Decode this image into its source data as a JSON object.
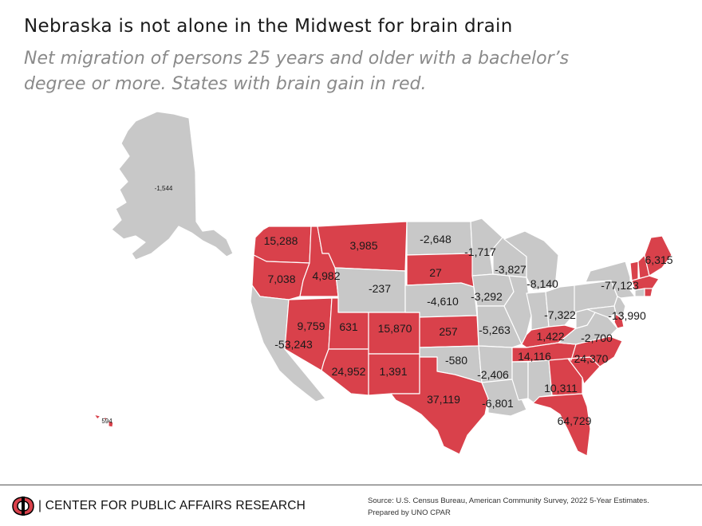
{
  "header": {
    "title": "Nebraska is not alone in the Midwest for brain drain",
    "subtitle": "Net migration of persons 25 years and older with a bachelor’s degree or more. States with brain gain in red."
  },
  "colors": {
    "gain": "#d9414b",
    "loss": "#c8c8c8",
    "border": "#ffffff",
    "text": "#1a1a1a"
  },
  "map_data": {
    "legend_rule": "States with brain gain in red",
    "states": [
      {
        "name": "Alaska",
        "label": "-1,544",
        "gain": false
      },
      {
        "name": "Hawaii",
        "label": "594",
        "gain": true
      },
      {
        "name": "Washington",
        "label": "15,288",
        "gain": true
      },
      {
        "name": "Oregon",
        "label": "7,038",
        "gain": true
      },
      {
        "name": "California",
        "label": "-53,243",
        "gain": false
      },
      {
        "name": "Idaho",
        "label": "4,982",
        "gain": true
      },
      {
        "name": "Nevada",
        "label": "9,759",
        "gain": true
      },
      {
        "name": "Montana",
        "label": "3,985",
        "gain": true
      },
      {
        "name": "Wyoming",
        "label": "-237",
        "gain": false
      },
      {
        "name": "Utah",
        "label": "631",
        "gain": true
      },
      {
        "name": "Arizona",
        "label": "24,952",
        "gain": true
      },
      {
        "name": "Colorado",
        "label": "15,870",
        "gain": true
      },
      {
        "name": "New Mexico",
        "label": "1,391",
        "gain": true
      },
      {
        "name": "North Dakota",
        "label": "-2,648",
        "gain": false
      },
      {
        "name": "South Dakota",
        "label": "27",
        "gain": true
      },
      {
        "name": "Nebraska",
        "label": "-4,610",
        "gain": false
      },
      {
        "name": "Kansas",
        "label": "257",
        "gain": true
      },
      {
        "name": "Oklahoma",
        "label": "-580",
        "gain": false
      },
      {
        "name": "Texas",
        "label": "37,119",
        "gain": true
      },
      {
        "name": "Minnesota",
        "label": "-1,717",
        "gain": false
      },
      {
        "name": "Iowa",
        "label": "-3,292",
        "gain": false
      },
      {
        "name": "Missouri",
        "label": "-5,263",
        "gain": false
      },
      {
        "name": "Arkansas",
        "label": "-2,406",
        "gain": false
      },
      {
        "name": "Louisiana",
        "label": "-6,801",
        "gain": false
      },
      {
        "name": "Wisconsin",
        "label": "-3,827",
        "gain": false
      },
      {
        "name": "Illinois",
        "label": "",
        "gain": false
      },
      {
        "name": "Michigan",
        "label": "-8,140",
        "gain": false
      },
      {
        "name": "Indiana",
        "label": "",
        "gain": false
      },
      {
        "name": "Ohio",
        "label": "-7,322",
        "gain": false
      },
      {
        "name": "Kentucky",
        "label": "1,422",
        "gain": true
      },
      {
        "name": "Tennessee",
        "label": "14,116",
        "gain": true
      },
      {
        "name": "Mississippi",
        "label": "",
        "gain": false
      },
      {
        "name": "Alabama",
        "label": "",
        "gain": false
      },
      {
        "name": "Georgia",
        "label": "10,311",
        "gain": true
      },
      {
        "name": "Florida",
        "label": "64,729",
        "gain": true
      },
      {
        "name": "South Carolina",
        "label": "",
        "gain": true
      },
      {
        "name": "North Carolina",
        "label": "24,370",
        "gain": true
      },
      {
        "name": "Virginia",
        "label": "-2,700",
        "gain": false
      },
      {
        "name": "West Virginia",
        "label": "",
        "gain": false
      },
      {
        "name": "Pennsylvania",
        "label": "",
        "gain": false
      },
      {
        "name": "New York",
        "label": "-77,123",
        "gain": false
      },
      {
        "name": "New Jersey",
        "label": "-13,990",
        "gain": false
      },
      {
        "name": "Maryland",
        "label": "",
        "gain": false
      },
      {
        "name": "Delaware",
        "label": "",
        "gain": true
      },
      {
        "name": "Vermont",
        "label": "",
        "gain": true
      },
      {
        "name": "New Hampshire",
        "label": "",
        "gain": true
      },
      {
        "name": "Maine",
        "label": "6,315",
        "gain": true
      },
      {
        "name": "Massachusetts",
        "label": "",
        "gain": true
      },
      {
        "name": "Connecticut",
        "label": "",
        "gain": false
      },
      {
        "name": "Rhode Island",
        "label": "",
        "gain": true
      }
    ]
  },
  "footer": {
    "org": "| CENTER FOR PUBLIC AFFAIRS RESEARCH",
    "source_line1": "Source: U.S. Census Bureau, American Community Survey, 2022 5-Year Estimates.",
    "source_line2": "Prepared  by UNO CPAR"
  }
}
